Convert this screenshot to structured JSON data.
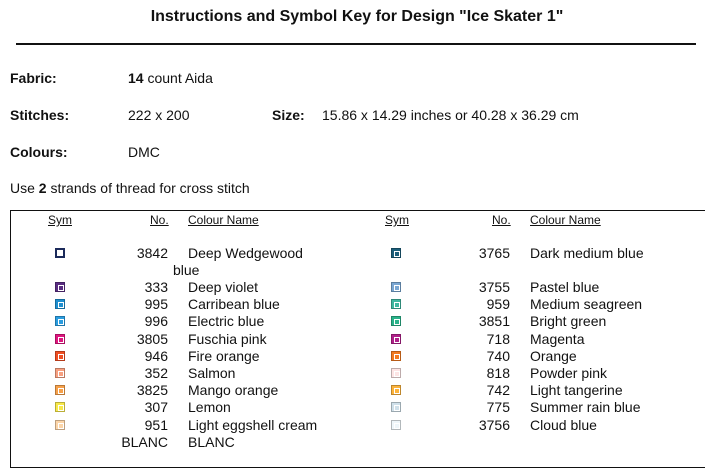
{
  "header": {
    "title": "Instructions and Symbol Key for Design \"Ice Skater 1\""
  },
  "fields": {
    "fabric": {
      "label": "Fabric:",
      "count": "14",
      "value": "count Aida"
    },
    "stitches": {
      "label": "Stitches:",
      "value": "222 x 200"
    },
    "size": {
      "label": "Size:",
      "value": "15.86 x 14.29 inches or 40.28 x 36.29 cm"
    },
    "colours": {
      "label": "Colours:",
      "value": "DMC"
    }
  },
  "instruction": {
    "prefix": "Use",
    "strands": "2",
    "suffix": "strands of thread for cross stitch"
  },
  "table": {
    "headers": [
      "Sym",
      "No.",
      "Colour Name"
    ],
    "left": [
      [
        3842,
        "Deep Wedgewood blue"
      ],
      [
        333,
        "Deep violet"
      ],
      [
        995,
        "Carribean blue"
      ],
      [
        996,
        "Electric blue"
      ],
      [
        3805,
        "Fuschia pink"
      ],
      [
        946,
        "Fire orange"
      ],
      [
        352,
        "Salmon"
      ],
      [
        3825,
        "Mango orange"
      ],
      [
        307,
        "Lemon"
      ],
      [
        951,
        "Light eggshell cream"
      ],
      [
        "BLANC",
        "BLANC"
      ]
    ],
    "right": [
      [
        3765,
        "Dark medium blue"
      ],
      [
        3755,
        "Pastel blue"
      ],
      [
        959,
        "Medium seagreen"
      ],
      [
        3851,
        "Bright green"
      ],
      [
        718,
        "Magenta"
      ],
      [
        740,
        "Orange"
      ],
      [
        818,
        "Powder pink"
      ],
      [
        742,
        "Light tangerine"
      ],
      [
        775,
        "Summer rain blue"
      ],
      [
        3756,
        "Cloud blue"
      ]
    ]
  }
}
